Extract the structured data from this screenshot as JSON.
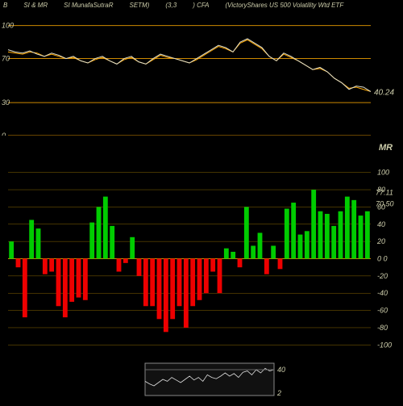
{
  "header": {
    "b": "B",
    "si_mr": "SI & MR",
    "munafa": "SI MunafaSutraR",
    "setm": "SETM)",
    "ratio": "(3,3",
    "cfa": ") CFA",
    "name": "(VictoryShares US 500  Volatility Wtd ETF"
  },
  "top_chart": {
    "type": "line",
    "yticks": [
      0,
      30,
      70,
      100
    ],
    "ylim": [
      0,
      110
    ],
    "last_value": "40.24",
    "grid_color": "#cc8800",
    "line_color": "#ddddcc",
    "overlay_color": "#ffaa00",
    "series": [
      78,
      76,
      75,
      77,
      74,
      72,
      75,
      73,
      70,
      72,
      68,
      66,
      70,
      72,
      68,
      65,
      70,
      72,
      67,
      65,
      70,
      74,
      72,
      70,
      68,
      66,
      70,
      74,
      78,
      82,
      80,
      76,
      85,
      88,
      84,
      80,
      72,
      68,
      75,
      72,
      68,
      64,
      60,
      62,
      58,
      52,
      48,
      42,
      45,
      44,
      40
    ],
    "overlay": [
      76,
      75,
      74,
      76,
      75,
      72,
      74,
      72,
      70,
      71,
      68,
      66,
      69,
      71,
      68,
      65,
      69,
      71,
      67,
      65,
      69,
      73,
      71,
      70,
      68,
      66,
      69,
      73,
      77,
      81,
      79,
      76,
      84,
      87,
      83,
      79,
      72,
      68,
      74,
      71,
      68,
      64,
      60,
      61,
      58,
      52,
      48,
      43,
      44,
      42,
      40
    ]
  },
  "bar_chart": {
    "type": "bar",
    "ylim": [
      -110,
      110
    ],
    "yticks_right": [
      -100,
      -80,
      -60,
      -40,
      -20,
      0,
      20,
      40,
      60,
      80,
      100
    ],
    "right_label_0": "0  0",
    "right_label_77": "77.11",
    "right_label_70": "70.50",
    "mr_label": "MR",
    "bar_color_pos": "#00cc00",
    "bar_color_neg": "#ee0000",
    "grid_color": "#886600",
    "values": [
      20,
      -10,
      -68,
      45,
      35,
      -18,
      -15,
      -55,
      -68,
      -50,
      -45,
      -48,
      42,
      60,
      72,
      38,
      -15,
      -5,
      25,
      -20,
      -55,
      -55,
      -70,
      -85,
      -70,
      -55,
      -80,
      -55,
      -48,
      -40,
      -15,
      -40,
      12,
      8,
      -10,
      60,
      15,
      30,
      -18,
      15,
      -12,
      58,
      65,
      28,
      32,
      80,
      55,
      52,
      38,
      55,
      72,
      68,
      50,
      55
    ]
  },
  "mini_chart": {
    "type": "line",
    "label_40": "40",
    "label_2": "2",
    "line_color": "#dddddd",
    "values": [
      22,
      18,
      15,
      20,
      25,
      22,
      28,
      24,
      20,
      25,
      30,
      24,
      28,
      22,
      32,
      28,
      26,
      30,
      35,
      30,
      34,
      28,
      36,
      38,
      32,
      40,
      35,
      42,
      38,
      40
    ]
  }
}
